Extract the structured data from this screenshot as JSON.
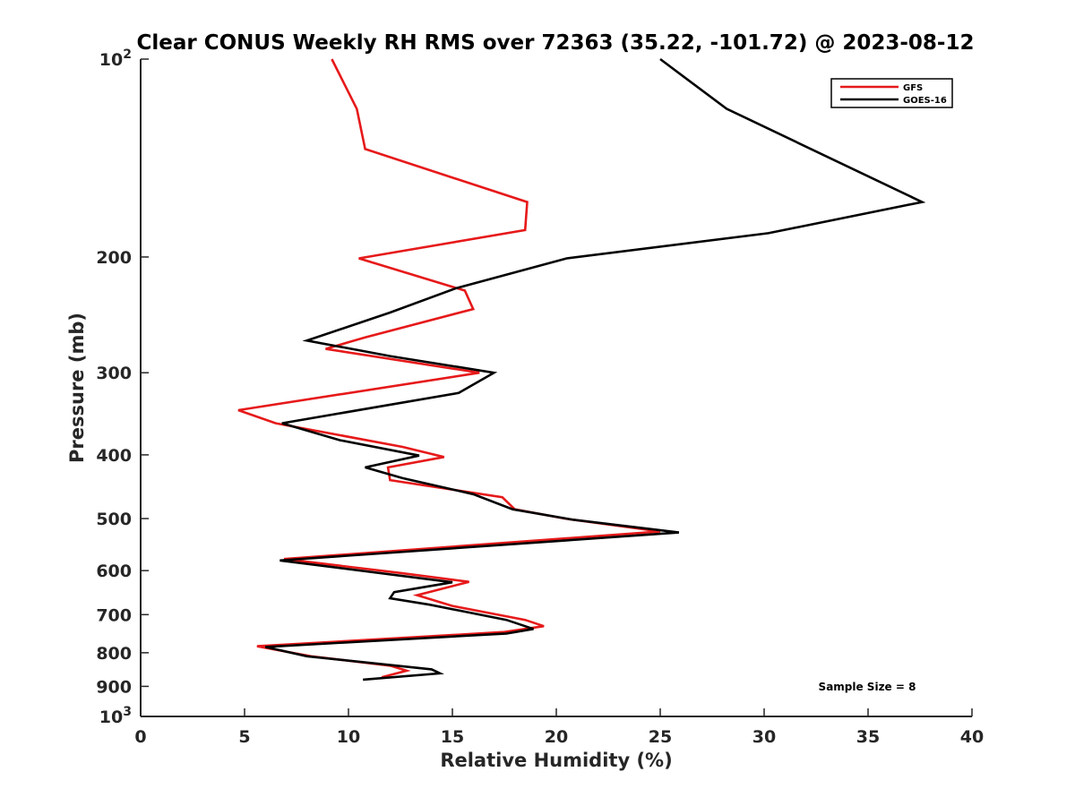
{
  "chart_data": {
    "type": "line",
    "title": "Clear CONUS Weekly RH RMS over 72363 (35.22, -101.72) @ 2023-08-12",
    "xlabel": "Relative Humidity (%)",
    "ylabel": "Pressure (mb)",
    "xlim": [
      0,
      40
    ],
    "ylim": [
      100,
      1000
    ],
    "yscale": "log",
    "yreversed": true,
    "grid": false,
    "legend_placement": "top-right",
    "x_ticks": [
      "0",
      "5",
      "10",
      "15",
      "20",
      "25",
      "30",
      "35",
      "40"
    ],
    "x_tick_values": [
      0,
      5,
      10,
      15,
      20,
      25,
      30,
      35,
      40
    ],
    "y_ticks": [
      {
        "value": 100,
        "base": "10",
        "exp": "2"
      },
      {
        "value": 200,
        "label": "200"
      },
      {
        "value": 300,
        "label": "300"
      },
      {
        "value": 400,
        "label": "400"
      },
      {
        "value": 500,
        "label": "500"
      },
      {
        "value": 600,
        "label": "600"
      },
      {
        "value": 700,
        "label": "700"
      },
      {
        "value": 800,
        "label": "800"
      },
      {
        "value": 900,
        "label": "900"
      },
      {
        "value": 1000,
        "base": "10",
        "exp": "3"
      }
    ],
    "series": [
      {
        "name": "GFS",
        "color": "#e6191a",
        "points": [
          [
            9.2,
            100
          ],
          [
            10.4,
            119
          ],
          [
            10.8,
            137
          ],
          [
            18.6,
            165
          ],
          [
            18.5,
            182
          ],
          [
            10.5,
            201
          ],
          [
            15.6,
            225
          ],
          [
            16.0,
            240
          ],
          [
            10.8,
            265
          ],
          [
            8.9,
            276
          ],
          [
            16.3,
            300
          ],
          [
            4.7,
            342
          ],
          [
            6.5,
            358
          ],
          [
            12.6,
            389
          ],
          [
            14.6,
            403
          ],
          [
            11.9,
            418
          ],
          [
            12.0,
            437
          ],
          [
            17.4,
            464
          ],
          [
            18.0,
            484
          ],
          [
            20.4,
            500
          ],
          [
            25.0,
            523
          ],
          [
            6.9,
            576
          ],
          [
            12.5,
            605
          ],
          [
            15.8,
            624
          ],
          [
            13.3,
            654
          ],
          [
            15.0,
            679
          ],
          [
            18.5,
            713
          ],
          [
            19.4,
            729
          ],
          [
            17.5,
            744
          ],
          [
            5.6,
            782
          ],
          [
            8.2,
            810
          ],
          [
            12.0,
            837
          ],
          [
            12.8,
            852
          ],
          [
            11.6,
            872
          ]
        ]
      },
      {
        "name": "GOES-16",
        "color": "#000000",
        "points": [
          [
            25.0,
            100
          ],
          [
            28.2,
            119
          ],
          [
            37.6,
            165
          ],
          [
            30.2,
            184
          ],
          [
            20.5,
            201
          ],
          [
            15.2,
            223
          ],
          [
            12.0,
            243
          ],
          [
            8.0,
            268
          ],
          [
            12.0,
            283
          ],
          [
            17.0,
            300
          ],
          [
            15.3,
            322
          ],
          [
            6.8,
            358
          ],
          [
            9.6,
            380
          ],
          [
            13.4,
            401
          ],
          [
            10.8,
            418
          ],
          [
            12.6,
            434
          ],
          [
            16.0,
            459
          ],
          [
            17.9,
            484
          ],
          [
            20.8,
            502
          ],
          [
            25.9,
            525
          ],
          [
            6.7,
            579
          ],
          [
            15.0,
            625
          ],
          [
            12.2,
            647
          ],
          [
            12.0,
            661
          ],
          [
            13.9,
            676
          ],
          [
            17.6,
            713
          ],
          [
            18.9,
            736
          ],
          [
            17.6,
            748
          ],
          [
            6.0,
            784
          ],
          [
            8.0,
            810
          ],
          [
            14.0,
            848
          ],
          [
            14.4,
            860
          ],
          [
            10.7,
            879
          ]
        ]
      }
    ],
    "annotation": "Sample Size = 8"
  }
}
